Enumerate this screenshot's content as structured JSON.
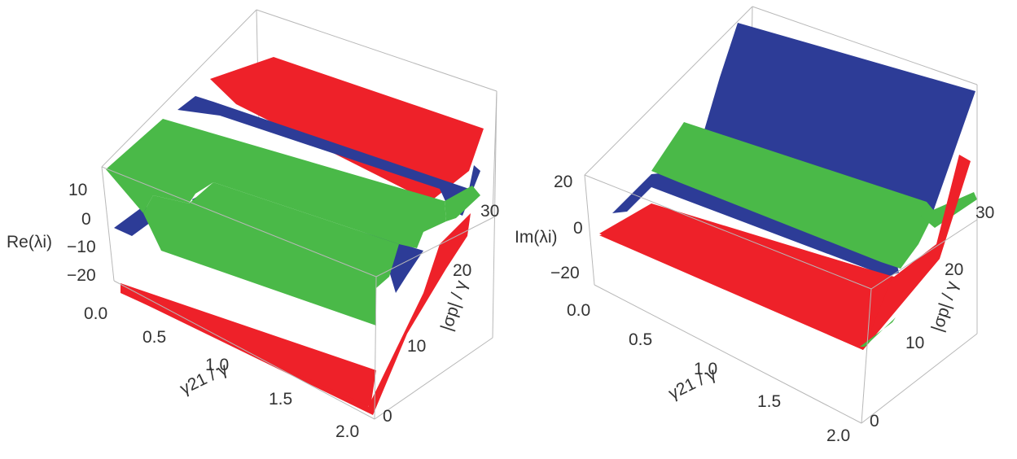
{
  "chart_data": [
    {
      "type": "surface3d",
      "zlabel": "Re(λi)",
      "xlabel": "γ21 / γ",
      "ylabel": "|σp| / γ",
      "xlim": [
        0.0,
        2.0
      ],
      "ylim": [
        0,
        30
      ],
      "zlim": [
        -25,
        15
      ],
      "xticks": [
        "0.0",
        "0.5",
        "1.0",
        "1.5",
        "2.0"
      ],
      "yticks": [
        "0",
        "10",
        "20",
        "30"
      ],
      "zticks": [
        "10",
        "0",
        "−10",
        "−20"
      ],
      "series": [
        {
          "color": "#ee2129",
          "level_low": -22,
          "level_high": 13
        },
        {
          "color": "#2d3c97",
          "level_low": -20,
          "level_high": 10
        },
        {
          "color": "#4ab948",
          "level_low": -22,
          "level_high": 8
        }
      ]
    },
    {
      "type": "surface3d",
      "zlabel": "Im(λi)",
      "xlabel": "γ21 / γ",
      "ylabel": "|σp| / γ",
      "xlim": [
        0.0,
        2.0
      ],
      "ylim": [
        0,
        30
      ],
      "zlim": [
        -25,
        25
      ],
      "xticks": [
        "0.0",
        "0.5",
        "1.0",
        "1.5",
        "2.0"
      ],
      "yticks": [
        "0",
        "10",
        "20",
        "30"
      ],
      "zticks": [
        "20",
        "0",
        "−20"
      ],
      "series": [
        {
          "color": "#ee2129",
          "level_low": -8,
          "level_high": 0
        },
        {
          "color": "#2d3c97",
          "level_low": -8,
          "level_high": 30
        },
        {
          "color": "#4ab948",
          "level_low": -6,
          "level_high": 20
        }
      ]
    }
  ]
}
